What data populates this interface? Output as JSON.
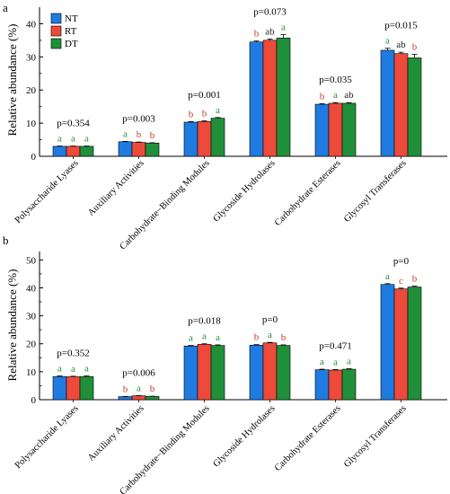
{
  "colors": {
    "NT": "#1f7be0",
    "RT": "#ee4a3a",
    "DT": "#1f8f3a",
    "label_default": "#1a1a1a",
    "label_a": "#1f8f3a",
    "label_b": "#c0392b"
  },
  "chart_data": [
    {
      "type": "bar",
      "panel_label": "a",
      "ylabel": "Relative abundance (%)",
      "ylim": [
        0,
        45
      ],
      "yticks": [
        0,
        10,
        20,
        30,
        40
      ],
      "categories": [
        "Polysaccharide Lyases",
        "Auxiliary Activities",
        "Carbohydrate−Binding Modules",
        "Glycoside Hydrolases",
        "Carbohydrate Esterases",
        "Glycosyl Transferases"
      ],
      "series": [
        {
          "name": "NT",
          "values": [
            3.0,
            4.4,
            10.3,
            34.5,
            15.7,
            32.0
          ],
          "errors": [
            0.1,
            0.1,
            0.2,
            0.3,
            0.2,
            0.6
          ]
        },
        {
          "name": "RT",
          "values": [
            3.0,
            4.2,
            10.5,
            35.0,
            16.0,
            31.0
          ],
          "errors": [
            0.1,
            0.1,
            0.2,
            0.4,
            0.2,
            0.4
          ]
        },
        {
          "name": "DT",
          "values": [
            3.0,
            4.0,
            11.5,
            35.7,
            16.0,
            29.7
          ],
          "errors": [
            0.1,
            0.1,
            0.2,
            1.0,
            0.2,
            1.1
          ]
        }
      ],
      "p_values": [
        "p=0.354",
        "p=0.003",
        "p=0.001",
        "p=0.073",
        "p=0.035",
        "p=0.015"
      ],
      "letters": [
        [
          "a",
          "a",
          "a"
        ],
        [
          "a",
          "b",
          "b"
        ],
        [
          "b",
          "b",
          "a"
        ],
        [
          "b",
          "ab",
          "a"
        ],
        [
          "b",
          "a",
          "ab"
        ],
        [
          "a",
          "ab",
          "b"
        ]
      ],
      "legend": [
        "NT",
        "RT",
        "DT"
      ],
      "legend_position": "top-left",
      "grid": false
    },
    {
      "type": "bar",
      "panel_label": "b",
      "ylabel": "Relative abundance (%)",
      "ylim": [
        0,
        53
      ],
      "yticks": [
        0,
        10,
        20,
        30,
        40,
        50
      ],
      "categories": [
        "Polysaccharide Lyases",
        "Auxiliary Activities",
        "Carbohydrate−Binding Modules",
        "Glycoside Hydrolases",
        "Carbohydrate Esterases",
        "Glycosyl Transferases"
      ],
      "series": [
        {
          "name": "NT",
          "values": [
            8.3,
            1.1,
            19.2,
            19.5,
            10.7,
            41.2
          ],
          "errors": [
            0.2,
            0.05,
            0.2,
            0.2,
            0.2,
            0.3
          ]
        },
        {
          "name": "RT",
          "values": [
            8.2,
            1.4,
            19.8,
            20.3,
            10.6,
            39.6
          ],
          "errors": [
            0.2,
            0.05,
            0.2,
            0.2,
            0.2,
            0.3
          ]
        },
        {
          "name": "DT",
          "values": [
            8.3,
            1.2,
            19.4,
            19.4,
            10.9,
            40.3
          ],
          "errors": [
            0.2,
            0.05,
            0.2,
            0.2,
            0.2,
            0.3
          ]
        }
      ],
      "p_values": [
        "p=0.352",
        "p=0.006",
        "p=0.018",
        "p=0",
        "p=0.471",
        "p=0"
      ],
      "letters": [
        [
          "a",
          "a",
          "a"
        ],
        [
          "b",
          "a",
          "b"
        ],
        [
          "a",
          "a",
          "a"
        ],
        [
          "b",
          "a",
          "b"
        ],
        [
          "a",
          "a",
          "a"
        ],
        [
          "a",
          "c",
          "b"
        ]
      ],
      "grid": false
    }
  ]
}
